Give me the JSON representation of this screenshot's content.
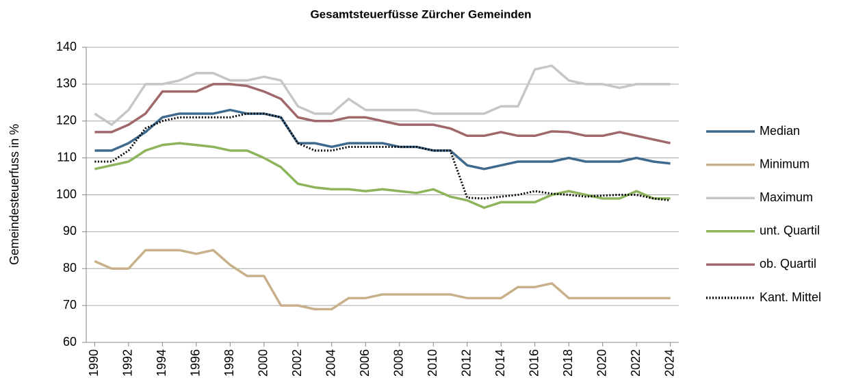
{
  "chart_data": {
    "type": "line",
    "title": "Gesamtsteuerfüsse Zürcher Gemeinden",
    "y_label": "Gemeindesteuerfuss in %",
    "x": [
      1990,
      1991,
      1992,
      1993,
      1994,
      1995,
      1996,
      1997,
      1998,
      1999,
      2000,
      2001,
      2002,
      2003,
      2004,
      2005,
      2006,
      2007,
      2008,
      2009,
      2010,
      2011,
      2012,
      2013,
      2014,
      2015,
      2016,
      2017,
      2018,
      2019,
      2020,
      2021,
      2022,
      2023,
      2024
    ],
    "xlim": [
      1989.5,
      2024.5
    ],
    "xticks": [
      1990,
      1992,
      1994,
      1996,
      1998,
      2000,
      2002,
      2004,
      2006,
      2008,
      2010,
      2012,
      2014,
      2016,
      2018,
      2020,
      2022,
      2024
    ],
    "ylim": [
      60,
      140
    ],
    "yticks": [
      60,
      70,
      80,
      90,
      100,
      110,
      120,
      130,
      140
    ],
    "grid": true,
    "legend": "right",
    "series": [
      {
        "name": "Median",
        "color": "#3f6a8e",
        "dash": "solid",
        "values": [
          112,
          112,
          114,
          117,
          121,
          122,
          122,
          122,
          123,
          122,
          122,
          121,
          114,
          114,
          113,
          114,
          114,
          114,
          113,
          113,
          112,
          112,
          108,
          107,
          108,
          109,
          109,
          109,
          110,
          109,
          109,
          109,
          110,
          109,
          108.5
        ]
      },
      {
        "name": "Minimum",
        "color": "#c8b08a",
        "dash": "solid",
        "values": [
          82,
          80,
          80,
          85,
          85,
          85,
          84,
          85,
          81,
          78,
          78,
          70,
          70,
          69,
          69,
          72,
          72,
          73,
          73,
          73,
          73,
          73,
          72,
          72,
          72,
          75,
          75,
          76,
          72,
          72,
          72,
          72,
          72,
          72,
          72
        ]
      },
      {
        "name": "Maximum",
        "color": "#c6c6c6",
        "dash": "solid",
        "values": [
          122,
          119,
          123,
          130,
          130,
          131,
          133,
          133,
          131,
          131,
          132,
          131,
          124,
          122,
          122,
          126,
          123,
          123,
          123,
          123,
          122,
          122,
          122,
          122,
          124,
          124,
          134,
          135,
          131,
          130,
          130,
          129,
          130,
          130,
          130
        ]
      },
      {
        "name": "unt. Quartil",
        "color": "#8db45a",
        "dash": "solid",
        "values": [
          107,
          108,
          109,
          112,
          113.5,
          114,
          113.5,
          113,
          112,
          112,
          110,
          107.5,
          103,
          102,
          101.5,
          101.5,
          101,
          101.5,
          101,
          100.5,
          101.5,
          99.5,
          98.5,
          96.5,
          98,
          98,
          98,
          100,
          101,
          100,
          99,
          99,
          101,
          99,
          99
        ]
      },
      {
        "name": "ob. Quartil",
        "color": "#a0686a",
        "dash": "solid",
        "values": [
          117,
          117,
          119,
          122,
          128,
          128,
          128,
          130,
          130,
          129.5,
          128,
          126,
          121,
          120,
          120,
          121,
          121,
          120,
          119,
          119,
          119,
          118,
          116,
          116,
          117,
          116,
          116,
          117.2,
          117,
          116,
          116,
          117,
          116,
          115,
          114
        ]
      },
      {
        "name": "Kant. Mittel",
        "color": "#000000",
        "dash": "dotted",
        "values": [
          109,
          109,
          112,
          118,
          120,
          121,
          121,
          121,
          121,
          122,
          122,
          121,
          114,
          112,
          112,
          113,
          113,
          113,
          113,
          113,
          112,
          112,
          99.2,
          99,
          99.5,
          100,
          101,
          100.3,
          100,
          99.5,
          99.8,
          100,
          100,
          99,
          98.5
        ]
      }
    ]
  }
}
